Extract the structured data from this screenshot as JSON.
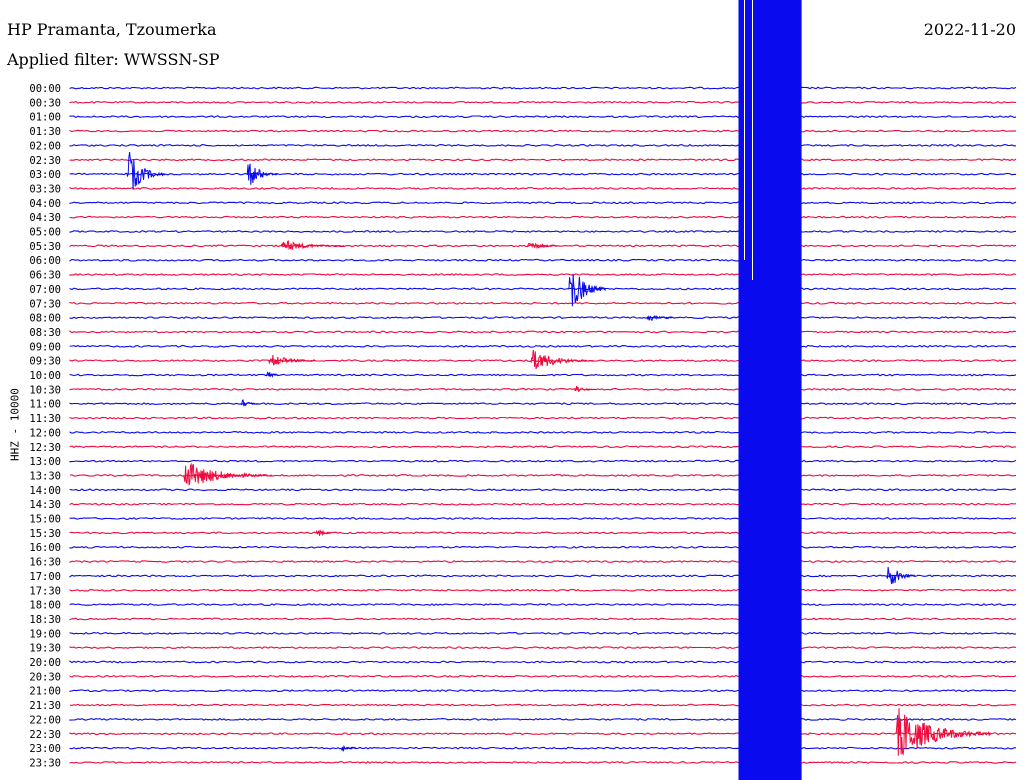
{
  "header": {
    "station": "HP Pramanta, Tzoumerka",
    "filter": "Applied filter: WWSSN-SP",
    "date": "2022-11-20",
    "channel_label": "HHZ - 10000"
  },
  "colors": {
    "blue": "#0a0aee",
    "red": "#ee0a3c"
  },
  "chart_data": {
    "type": "line",
    "title": "HP Pramanta, Tzoumerka",
    "subtitle": "Applied filter: WWSSN-SP",
    "ylabel": "HHZ - 10000",
    "row_labels": [
      "00:00",
      "00:30",
      "01:00",
      "01:30",
      "02:00",
      "02:30",
      "03:00",
      "03:30",
      "04:00",
      "04:30",
      "05:00",
      "05:30",
      "06:00",
      "06:30",
      "07:00",
      "07:30",
      "08:00",
      "08:30",
      "09:00",
      "09:30",
      "10:00",
      "10:30",
      "11:00",
      "11:30",
      "12:00",
      "12:30",
      "13:00",
      "13:30",
      "14:00",
      "14:30",
      "15:00",
      "15:30",
      "16:00",
      "16:30",
      "17:00",
      "17:30",
      "18:00",
      "18:30",
      "19:00",
      "19:30",
      "20:00",
      "20:30",
      "21:00",
      "21:30",
      "22:00",
      "22:30",
      "23:00",
      "23:30"
    ],
    "row_colors": "alternating blue/red",
    "saturated_block_minutes": [
      21.2,
      23.2
    ],
    "events": [
      {
        "row": 6,
        "minute": 1.8,
        "amp": 28,
        "dur": 1.2,
        "color": "blue"
      },
      {
        "row": 6,
        "minute": 5.6,
        "amp": 18,
        "dur": 1.0,
        "color": "blue"
      },
      {
        "row": 11,
        "minute": 6.7,
        "amp": 7,
        "dur": 2.0,
        "color": "red"
      },
      {
        "row": 11,
        "minute": 14.5,
        "amp": 6,
        "dur": 1.0,
        "color": "red"
      },
      {
        "row": 14,
        "minute": 15.8,
        "amp": 32,
        "dur": 1.2,
        "color": "blue"
      },
      {
        "row": 16,
        "minute": 18.3,
        "amp": 5,
        "dur": 0.8,
        "color": "blue"
      },
      {
        "row": 19,
        "minute": 6.3,
        "amp": 8,
        "dur": 1.5,
        "color": "red"
      },
      {
        "row": 19,
        "minute": 14.6,
        "amp": 13,
        "dur": 2.0,
        "color": "red"
      },
      {
        "row": 20,
        "minute": 6.2,
        "amp": 8,
        "dur": 0.4,
        "color": "blue"
      },
      {
        "row": 21,
        "minute": 16.0,
        "amp": 5,
        "dur": 0.6,
        "color": "red"
      },
      {
        "row": 22,
        "minute": 5.4,
        "amp": 6,
        "dur": 0.6,
        "color": "blue"
      },
      {
        "row": 27,
        "minute": 3.6,
        "amp": 16,
        "dur": 2.8,
        "color": "red"
      },
      {
        "row": 31,
        "minute": 7.8,
        "amp": 7,
        "dur": 0.5,
        "color": "red"
      },
      {
        "row": 34,
        "minute": 25.9,
        "amp": 18,
        "dur": 0.9,
        "color": "blue"
      },
      {
        "row": 45,
        "minute": 26.2,
        "amp": 30,
        "dur": 3.0,
        "color": "red"
      },
      {
        "row": 46,
        "minute": 8.6,
        "amp": 6,
        "dur": 0.5,
        "color": "blue"
      }
    ]
  }
}
